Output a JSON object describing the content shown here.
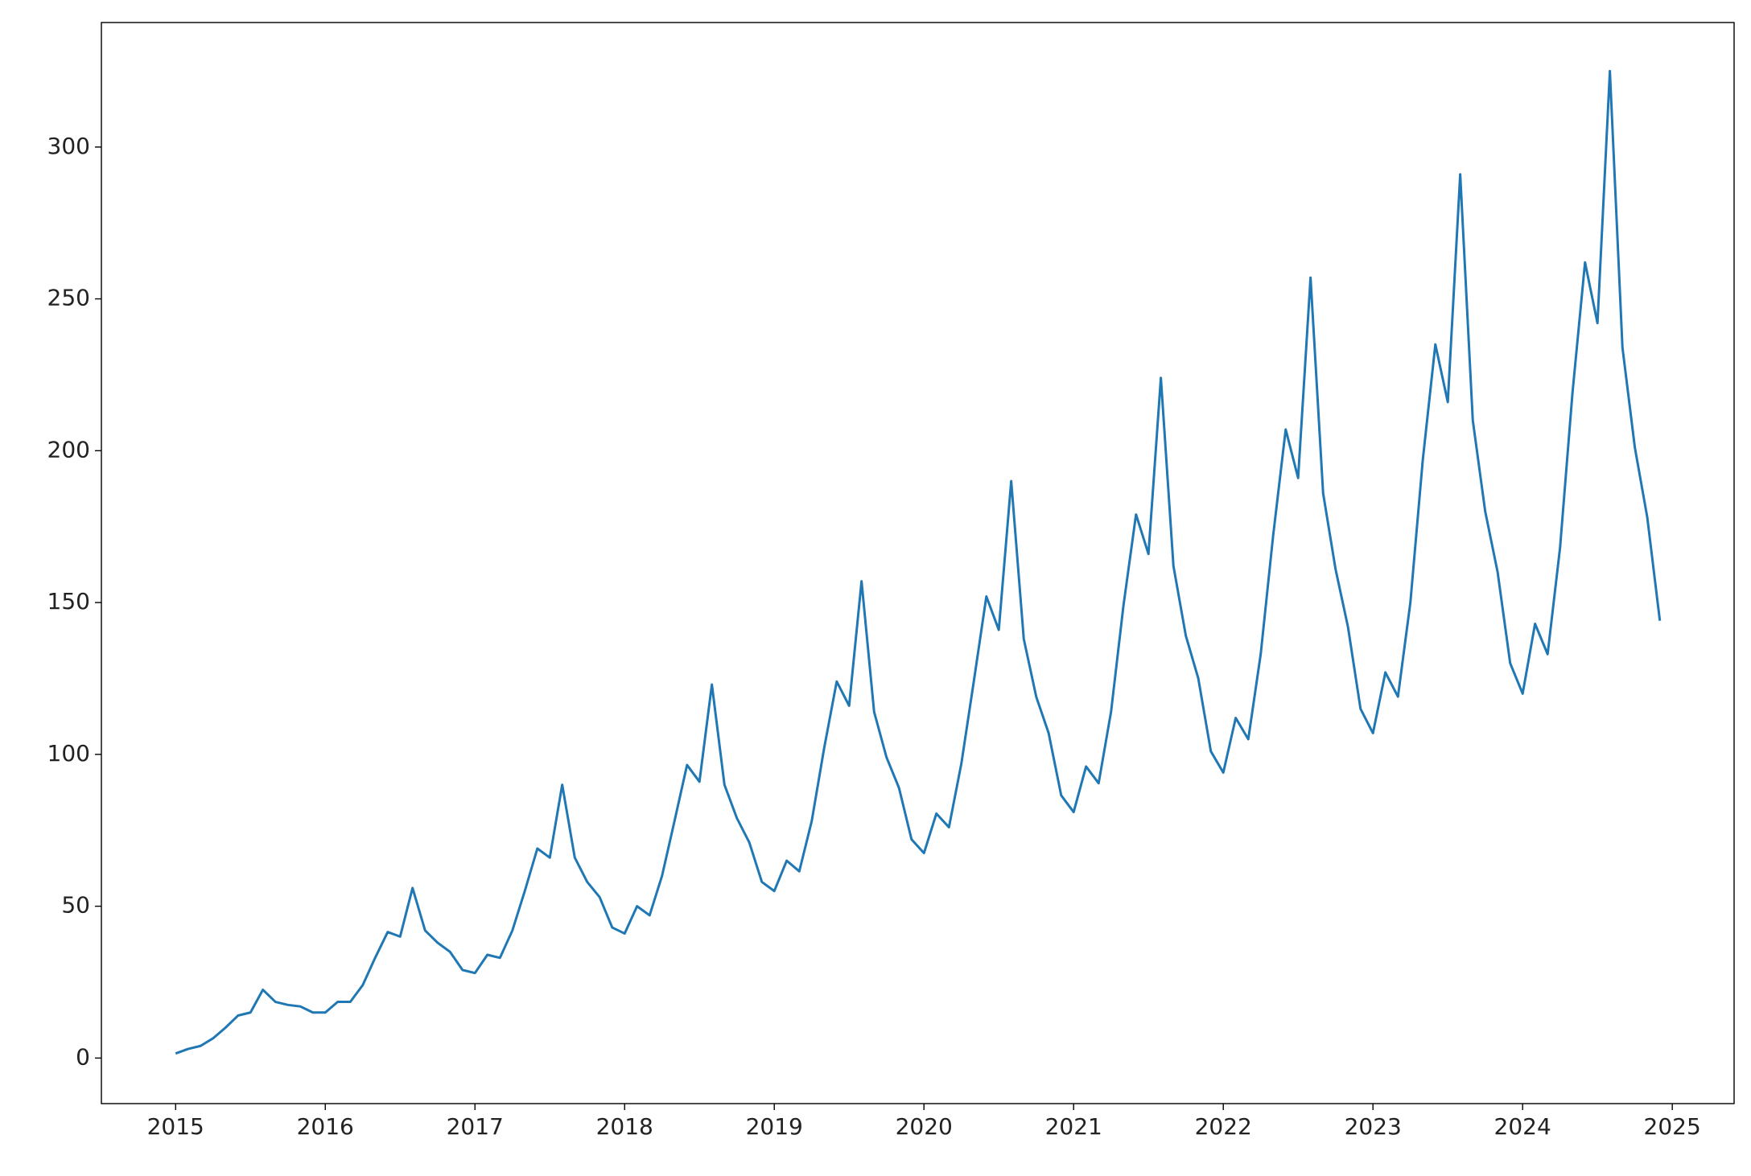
{
  "chart_data": {
    "type": "line",
    "x": [
      2015,
      2015.083,
      2015.167,
      2015.25,
      2015.333,
      2015.417,
      2015.5,
      2015.583,
      2015.667,
      2015.75,
      2015.833,
      2015.917,
      2016,
      2016.083,
      2016.167,
      2016.25,
      2016.333,
      2016.417,
      2016.5,
      2016.583,
      2016.667,
      2016.75,
      2016.833,
      2016.917,
      2017,
      2017.083,
      2017.167,
      2017.25,
      2017.333,
      2017.417,
      2017.5,
      2017.583,
      2017.667,
      2017.75,
      2017.833,
      2017.917,
      2018,
      2018.083,
      2018.167,
      2018.25,
      2018.333,
      2018.417,
      2018.5,
      2018.583,
      2018.667,
      2018.75,
      2018.833,
      2018.917,
      2019,
      2019.083,
      2019.167,
      2019.25,
      2019.333,
      2019.417,
      2019.5,
      2019.583,
      2019.667,
      2019.75,
      2019.833,
      2019.917,
      2020,
      2020.083,
      2020.167,
      2020.25,
      2020.333,
      2020.417,
      2020.5,
      2020.583,
      2020.667,
      2020.75,
      2020.833,
      2020.917,
      2021,
      2021.083,
      2021.167,
      2021.25,
      2021.333,
      2021.417,
      2021.5,
      2021.583,
      2021.667,
      2021.75,
      2021.833,
      2021.917,
      2022,
      2022.083,
      2022.167,
      2022.25,
      2022.333,
      2022.417,
      2022.5,
      2022.583,
      2022.667,
      2022.75,
      2022.833,
      2022.917,
      2023,
      2023.083,
      2023.167,
      2023.25,
      2023.333,
      2023.417,
      2023.5,
      2023.583,
      2023.667,
      2023.75,
      2023.833,
      2023.917,
      2024,
      2024.083,
      2024.167,
      2024.25,
      2024.333,
      2024.417,
      2024.5,
      2024.583,
      2024.667,
      2024.75,
      2024.833,
      2024.917
    ],
    "series": [
      {
        "color": "#1f77b4",
        "values": [
          1.5,
          3,
          4,
          6.5,
          10,
          14,
          15,
          22.5,
          18.5,
          17.5,
          17,
          15,
          15,
          18.5,
          18.5,
          24,
          33,
          41.5,
          40,
          56,
          42,
          38,
          35,
          29,
          28,
          34,
          33,
          42,
          55,
          69,
          66,
          90,
          66,
          58,
          53,
          43,
          41,
          50,
          47,
          60,
          78,
          96.5,
          91,
          123,
          90,
          79,
          71,
          58,
          55,
          65,
          61.5,
          78,
          102,
          124,
          116,
          157,
          114,
          99,
          89,
          72,
          67.5,
          80.5,
          76,
          97,
          124,
          152,
          141,
          190,
          138,
          119,
          107,
          86.5,
          81,
          96,
          90.5,
          114,
          149,
          179,
          166,
          224,
          162,
          139,
          125,
          101,
          94,
          112,
          105,
          133,
          172,
          207,
          191,
          257,
          186,
          161,
          142,
          115,
          107,
          127,
          119,
          150,
          197,
          235,
          216,
          291,
          210,
          180,
          160,
          130,
          120,
          143,
          133,
          168,
          219,
          262,
          242,
          325,
          234,
          201,
          178,
          144
        ]
      }
    ],
    "xlim": [
      2014.504,
      2025.413
    ],
    "xticks": [
      2015,
      2016,
      2017,
      2018,
      2019,
      2020,
      2021,
      2022,
      2023,
      2024,
      2025
    ],
    "ylim": [
      -15,
      341
    ],
    "yticks": [
      0,
      50,
      100,
      150,
      200,
      250,
      300
    ],
    "grid": false
  }
}
